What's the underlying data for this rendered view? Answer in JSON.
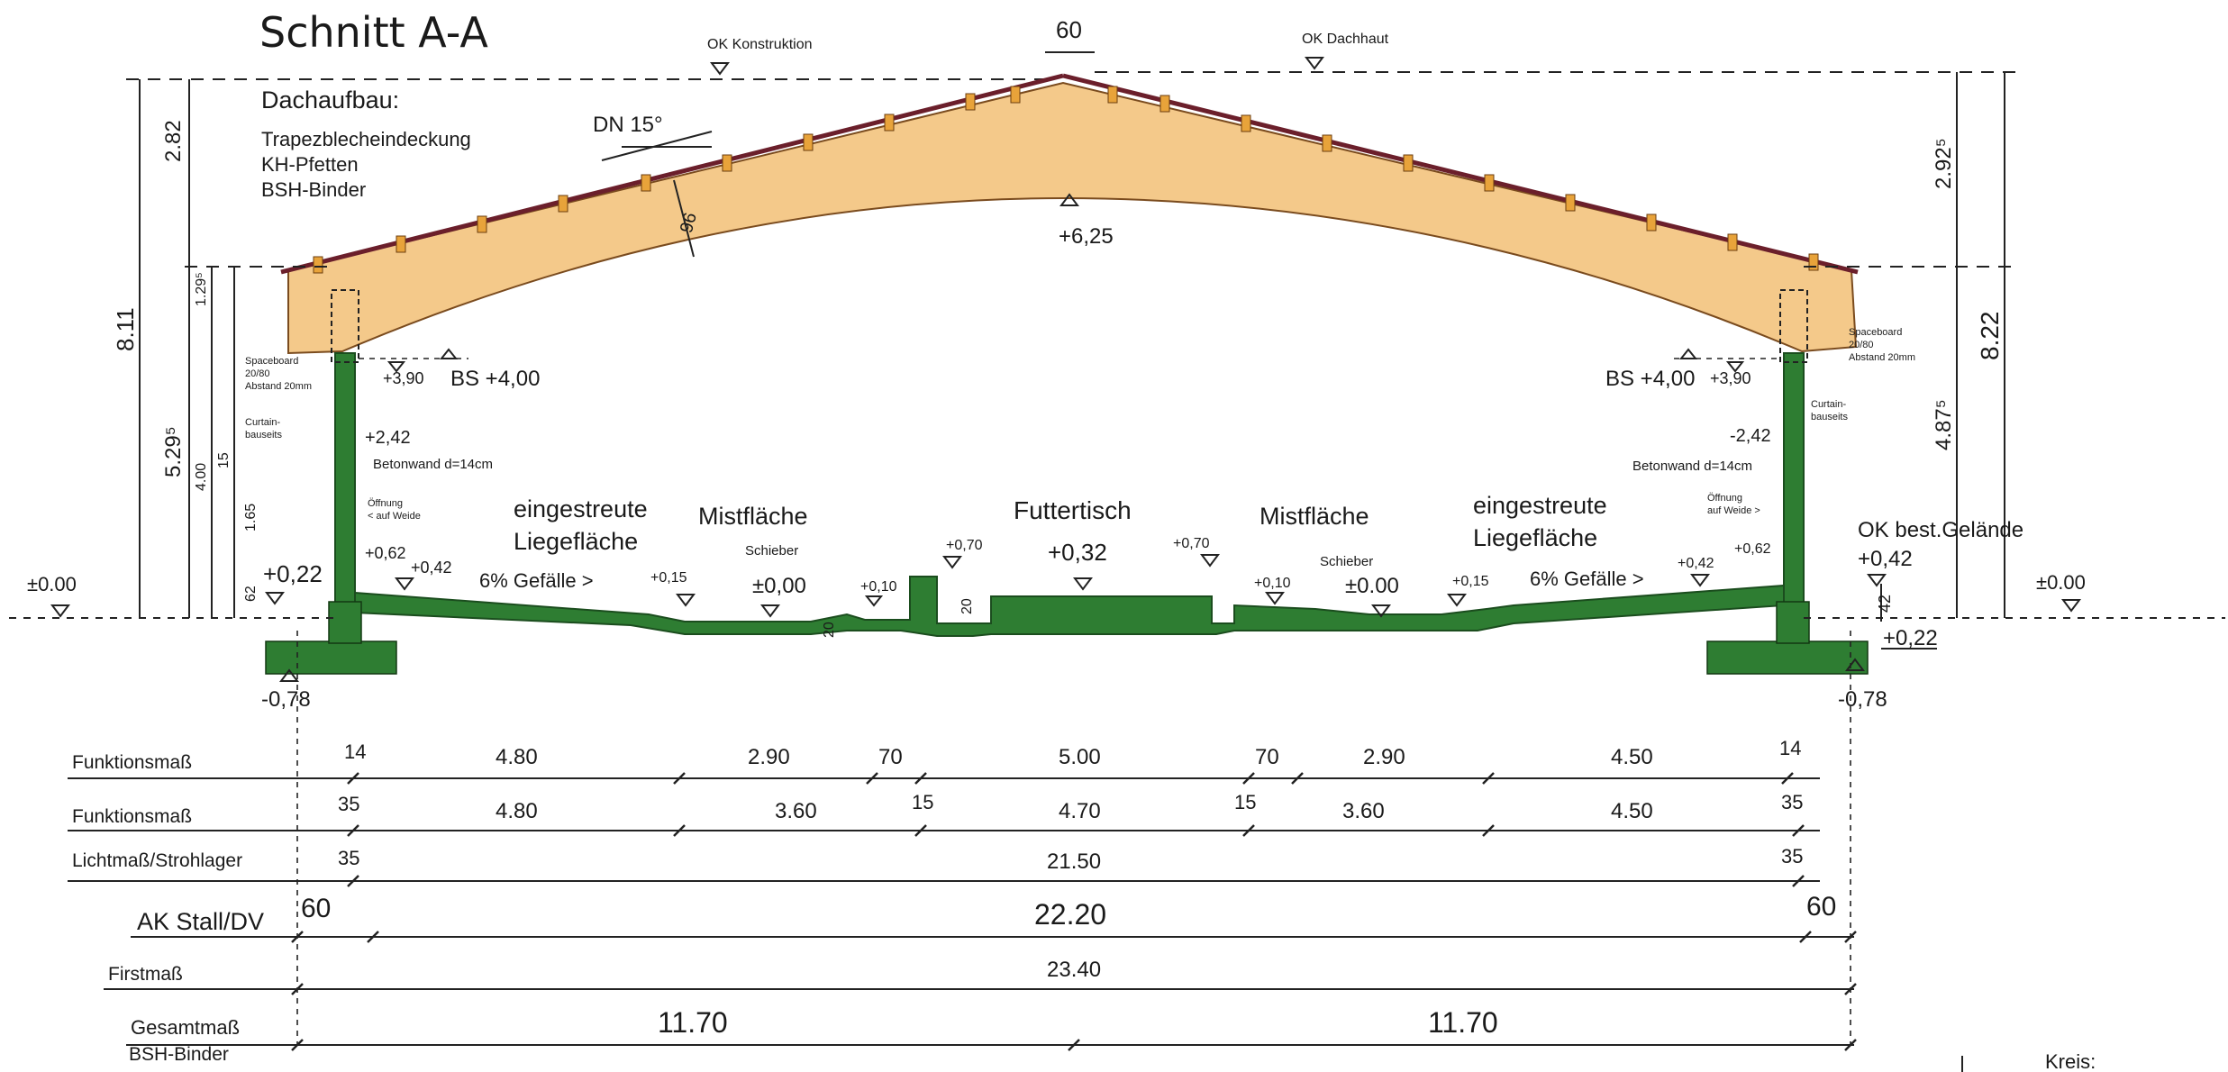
{
  "title": "Schnitt A-A",
  "roof_build": {
    "heading": "Dachaufbau:",
    "lines": [
      "Trapezblecheindeckung",
      "KH-Pfetten",
      "BSH-Binder"
    ]
  },
  "roof_pitch": "DN 15°",
  "top_labels": {
    "ok_konstruktion": "OK Konstruktion",
    "ok_dachhaut": "OK Dachhaut",
    "ridge_width": "60"
  },
  "elevations": {
    "ridge_underside": "+6,25",
    "beam_left": "+3,90",
    "bs_left": "BS +4,00",
    "bs_right": "BS +4,00",
    "beam_right": "+3,90",
    "opening_left": "+2,42",
    "opening_right": "-2,42",
    "wall_left": "+0,62",
    "wall_right": "+0,62",
    "floor_left_a": "+0,42",
    "floor_right_a": "+0,42",
    "floor_left_b": "+0,22",
    "floor_right_b": "+0,22",
    "zero_left": "±0.00",
    "zero_right": "±0.00",
    "found_left": "-0,78",
    "found_right": "-0,78",
    "slope_left_top": "+0,15",
    "slope_right_top": "+0,15",
    "mist_left": "±0,00",
    "mist_right": "±0.00",
    "gutter_left": "+0,10",
    "gutter_right": "+0,10",
    "ft_edge_left": "+0,70",
    "ft_edge_right": "+0,70",
    "futtertisch": "+0,32",
    "ok_best_gelaende": "OK best.Gelände",
    "ok_best_value": "+0,42"
  },
  "zones": {
    "liege_left_1": "eingestreute",
    "liege_left_2": "Liegefläche",
    "mist_left": "Mistfläche",
    "schieber_left": "Schieber",
    "futtertisch": "Futtertisch",
    "mist_right": "Mistfläche",
    "schieber_right": "Schieber",
    "liege_right_1": "eingestreute",
    "liege_right_2": "Liegefläche",
    "gefaelle_left": "6% Gefälle >",
    "gefaelle_right": "6% Gefälle >"
  },
  "wall_notes": {
    "spaceboard_left": [
      "Spaceboard",
      "20/80",
      "Abstand 20mm"
    ],
    "spaceboard_right": [
      "Spaceboard",
      "20/80",
      "Abstand 20mm"
    ],
    "curtain_left": [
      "Curtain-",
      "bauseits"
    ],
    "curtain_right": [
      "Curtain-",
      "bauseits"
    ],
    "betonwand_left": "Betonwand d=14cm",
    "betonwand_right": "Betonwand d=14cm",
    "oeffnung_left": [
      "Öffnung",
      "< auf Weide"
    ],
    "oeffnung_right": [
      "Öffnung",
      "auf Weide >"
    ]
  },
  "side_dims": {
    "left_total": "8.11",
    "left_roof": "2.82",
    "left_eave": "1.29⁵",
    "left_wall": "5.29⁵",
    "left_400": "4.00",
    "left_15": "15",
    "left_165": "1.65",
    "left_62": "62",
    "right_total": "8.22",
    "right_roof": "2.92⁵",
    "right_wall": "4.87⁵",
    "right_42": "42",
    "beam_depth": "96",
    "gutter_20_a": "20",
    "gutter_20_b": "20"
  },
  "dim_rows": [
    {
      "label": "Funktionsmaß",
      "values": [
        "14",
        "4.80",
        "2.90",
        "70",
        "5.00",
        "70",
        "2.90",
        "4.50",
        "14"
      ]
    },
    {
      "label": "Funktionsmaß",
      "values": [
        "35",
        "4.80",
        "3.60",
        "15",
        "4.70",
        "15",
        "3.60",
        "4.50",
        "35"
      ]
    },
    {
      "label": "Lichtmaß/Strohlager",
      "values": [
        "35",
        "21.50",
        "35"
      ]
    },
    {
      "label": "AK Stall/DV",
      "values": [
        "60",
        "22.20",
        "60"
      ]
    },
    {
      "label": "Firstmaß",
      "values": [
        "23.40"
      ]
    },
    {
      "label": "Gesamtmaß",
      "values": [
        "11.70",
        "11.70"
      ]
    }
  ],
  "dim_row_last_sublabel": "BSH-Binder",
  "corner_text": "Kreis:"
}
